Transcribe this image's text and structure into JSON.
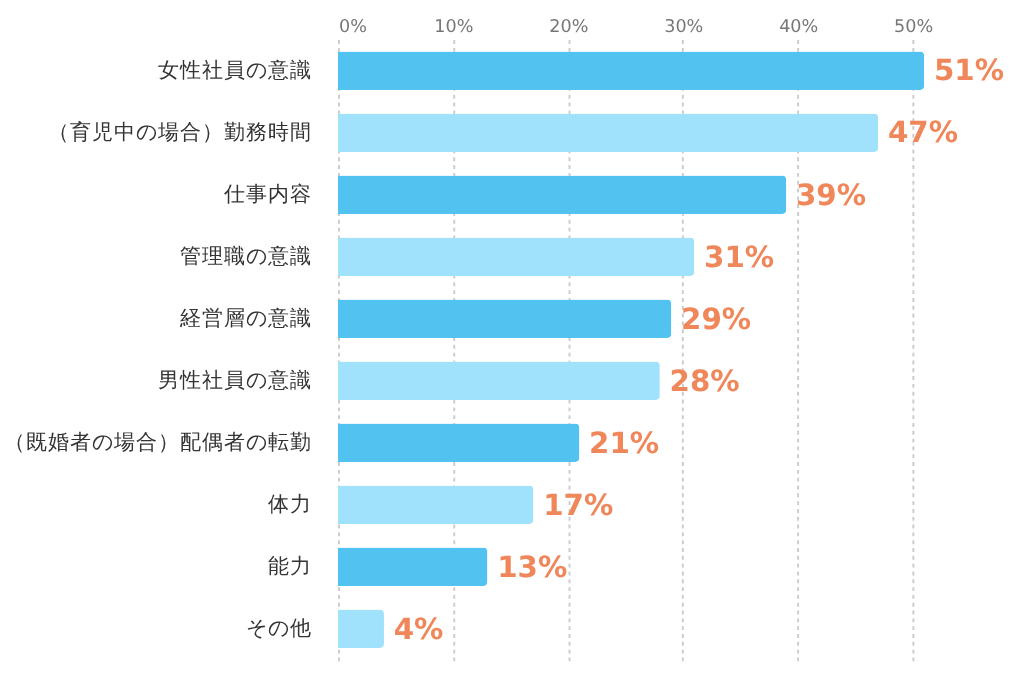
{
  "chart_data": {
    "type": "bar",
    "orientation": "horizontal",
    "categories": [
      "女性社員の意識",
      "（育児中の場合）勤務時間",
      "仕事内容",
      "管理職の意識",
      "経営層の意識",
      "男性社員の意識",
      "（既婚者の場合）配偶者の転勤",
      "体力",
      "能力",
      "その他"
    ],
    "values": [
      51,
      47,
      39,
      31,
      29,
      28,
      21,
      17,
      13,
      4
    ],
    "colors": [
      "#52c3f1",
      "#a0e2fb",
      "#52c3f1",
      "#a0e2fb",
      "#52c3f1",
      "#a0e2fb",
      "#52c3f1",
      "#a0e2fb",
      "#52c3f1",
      "#a0e2fb"
    ],
    "value_labels": [
      "51%",
      "47%",
      "39%",
      "31%",
      "29%",
      "28%",
      "21%",
      "17%",
      "13%",
      "4%"
    ],
    "xticks": [
      {
        "value": 0,
        "label": "0%"
      },
      {
        "value": 10,
        "label": "10%"
      },
      {
        "value": 20,
        "label": "20%"
      },
      {
        "value": 30,
        "label": "30%"
      },
      {
        "value": 40,
        "label": "40%"
      },
      {
        "value": 50,
        "label": "50%"
      }
    ],
    "xlim": [
      0,
      51
    ],
    "grid": "x"
  }
}
